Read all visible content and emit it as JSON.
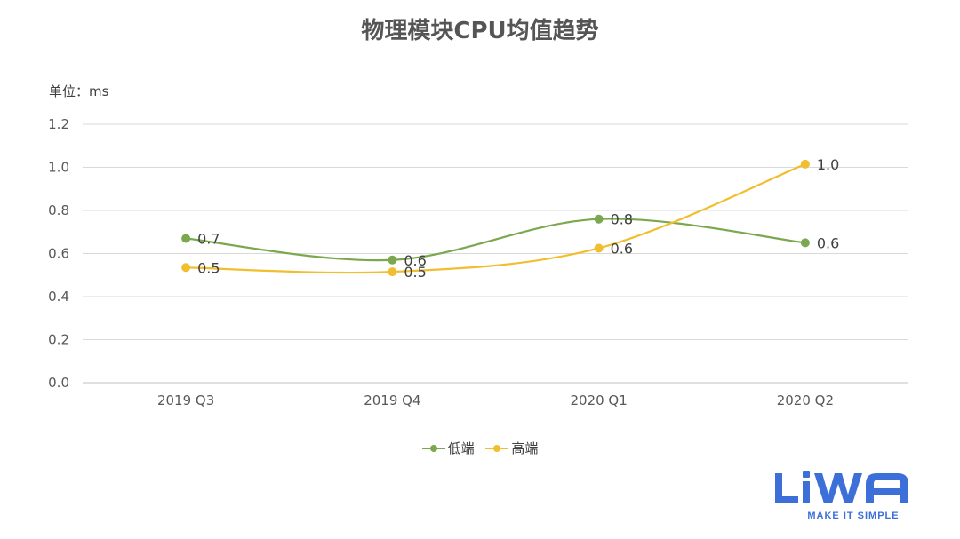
{
  "chart_data": {
    "type": "line",
    "title": "物理模块CPU均值趋势",
    "unit_label": "单位：ms",
    "categories": [
      "2019 Q3",
      "2019 Q4",
      "2020 Q1",
      "2020 Q2"
    ],
    "ylim": [
      0,
      1.2
    ],
    "yticks": [
      "0.0",
      "0.2",
      "0.4",
      "0.6",
      "0.8",
      "1.0",
      "1.2"
    ],
    "grid": true,
    "smooth": true,
    "legend_position": "bottom",
    "series": [
      {
        "name": "低端",
        "color": "#7BA84E",
        "values": [
          0.67,
          0.57,
          0.76,
          0.65
        ],
        "labels": [
          "0.7",
          "0.6",
          "0.8",
          "0.6"
        ]
      },
      {
        "name": "高端",
        "color": "#F0BE2E",
        "values": [
          0.535,
          0.515,
          0.625,
          1.015
        ],
        "labels": [
          "0.5",
          "0.5",
          "0.6",
          "1.0"
        ]
      }
    ]
  },
  "logo": {
    "brand": "LiWA",
    "tagline": "MAKE IT SIMPLE",
    "color": "#3d6fd9"
  }
}
